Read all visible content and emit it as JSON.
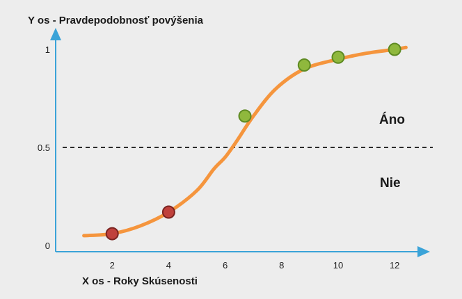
{
  "chart_data": {
    "type": "line",
    "ylabel": "Y os - Pravdepodobnosť povýšenia",
    "xlabel": "X  os - Roky Skúsenosti",
    "x_ticks": [
      "2",
      "4",
      "6",
      "8",
      "10",
      "12"
    ],
    "y_ticks": [
      "0",
      "0.5",
      "1"
    ],
    "xlim": [
      0,
      13
    ],
    "ylim": [
      0,
      1.1
    ],
    "threshold": 0.5,
    "region_labels": {
      "above": "Áno",
      "below": "Nie"
    },
    "curve": {
      "color": "#f5953d",
      "x": [
        1.0,
        2.0,
        3.0,
        4.0,
        5.0,
        5.6,
        6.0,
        6.4,
        7.0,
        7.8,
        8.8,
        10.0,
        11.0,
        12.0,
        12.4
      ],
      "y": [
        0.05,
        0.06,
        0.1,
        0.17,
        0.28,
        0.39,
        0.45,
        0.53,
        0.66,
        0.8,
        0.9,
        0.95,
        0.98,
        1.0,
        1.01
      ]
    },
    "points": [
      {
        "x": 2.0,
        "y": 0.06,
        "class": "Nie",
        "color": "#c0413c"
      },
      {
        "x": 4.0,
        "y": 0.17,
        "class": "Nie",
        "color": "#c0413c"
      },
      {
        "x": 6.7,
        "y": 0.66,
        "class": "Áno",
        "color": "#8fb83d"
      },
      {
        "x": 8.8,
        "y": 0.92,
        "class": "Áno",
        "color": "#8fb83d"
      },
      {
        "x": 10.0,
        "y": 0.96,
        "class": "Áno",
        "color": "#8fb83d"
      },
      {
        "x": 12.0,
        "y": 1.0,
        "class": "Áno",
        "color": "#8fb83d"
      }
    ],
    "axis_color": "#3aa3d8",
    "grid": false
  }
}
